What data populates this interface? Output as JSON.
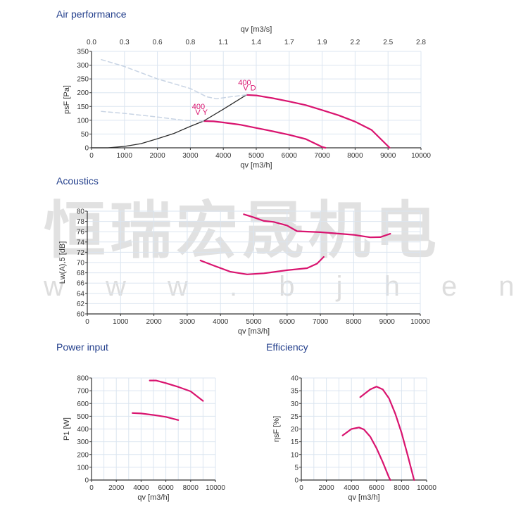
{
  "watermark": {
    "text": "恒瑞宏晟机电",
    "url": "w w w . b j h e n g r u i . c n"
  },
  "colors": {
    "curve": "#d9146f",
    "system_curve": "#2b2b2b",
    "dashed": "#c8d4e4",
    "grid": "#dbe5f0",
    "title": "#233f8c"
  },
  "chart_data": [
    {
      "id": "air",
      "type": "line",
      "title": "Air performance",
      "xlabel": "qv [m3/h]",
      "x2label": "qv [m3/s]",
      "ylabel": "psF [Pa]",
      "xlim": [
        0,
        10000
      ],
      "ylim": [
        0,
        350
      ],
      "xticks": [
        0,
        1000,
        2000,
        3000,
        4000,
        5000,
        6000,
        7000,
        8000,
        9000,
        10000
      ],
      "x2ticks": [
        "0.0",
        "0.3",
        "0.6",
        "0.8",
        "1.1",
        "1.4",
        "1.7",
        "1.9",
        "2.2",
        "2.5",
        "2.8"
      ],
      "yticks": [
        0,
        50,
        100,
        150,
        200,
        250,
        300,
        350
      ],
      "grid": true,
      "annotations": [
        {
          "text": "400",
          "x": 4450,
          "y": 228
        },
        {
          "text": "V D",
          "x": 4600,
          "y": 208
        },
        {
          "text": "400",
          "x": 3050,
          "y": 140
        },
        {
          "text": "V Y",
          "x": 3150,
          "y": 120
        }
      ],
      "series": [
        {
          "label": "400 VD",
          "style": "solid",
          "points": [
            [
              4700,
              192
            ],
            [
              5000,
              190
            ],
            [
              5500,
              180
            ],
            [
              6000,
              168
            ],
            [
              6500,
              155
            ],
            [
              7000,
              137
            ],
            [
              7500,
              118
            ],
            [
              8000,
              95
            ],
            [
              8500,
              65
            ],
            [
              9050,
              0
            ]
          ]
        },
        {
          "label": "400 VY",
          "style": "solid",
          "points": [
            [
              3400,
              97
            ],
            [
              3700,
              96
            ],
            [
              4000,
              92
            ],
            [
              4500,
              84
            ],
            [
              5000,
              72
            ],
            [
              5500,
              60
            ],
            [
              6000,
              47
            ],
            [
              6500,
              32
            ],
            [
              7000,
              3
            ],
            [
              7100,
              0
            ]
          ]
        },
        {
          "label": "system",
          "style": "system",
          "points": [
            [
              0,
              0
            ],
            [
              500,
              0
            ],
            [
              1000,
              5
            ],
            [
              1500,
              15
            ],
            [
              2000,
              33
            ],
            [
              2500,
              52
            ],
            [
              3000,
              78
            ],
            [
              3400,
              97
            ],
            [
              4000,
              140
            ],
            [
              4700,
              192
            ]
          ]
        },
        {
          "label": "VD stall",
          "style": "dashed",
          "points": [
            [
              300,
              320
            ],
            [
              1000,
              295
            ],
            [
              2000,
              250
            ],
            [
              3000,
              215
            ],
            [
              3500,
              185
            ],
            [
              3800,
              178
            ],
            [
              4200,
              185
            ],
            [
              4700,
              192
            ]
          ]
        },
        {
          "label": "VY stall",
          "style": "dashed",
          "points": [
            [
              300,
              132
            ],
            [
              1000,
              125
            ],
            [
              2000,
              112
            ],
            [
              2800,
              100
            ],
            [
              3400,
              97
            ]
          ]
        }
      ]
    },
    {
      "id": "acoustics",
      "type": "line",
      "title": "Acoustics",
      "xlabel": "qv [m3/h]",
      "ylabel": "Lw(A),5 [dB]",
      "xlim": [
        0,
        10000
      ],
      "ylim": [
        60,
        80
      ],
      "xticks": [
        0,
        1000,
        2000,
        3000,
        4000,
        5000,
        6000,
        7000,
        8000,
        9000,
        10000
      ],
      "yticks": [
        60,
        62,
        64,
        66,
        68,
        70,
        72,
        74,
        76,
        78,
        80
      ],
      "grid": true,
      "series": [
        {
          "label": "400 VD",
          "style": "solid",
          "points": [
            [
              4700,
              79.4
            ],
            [
              5000,
              78.8
            ],
            [
              5300,
              78.1
            ],
            [
              5600,
              77.9
            ],
            [
              6000,
              77.2
            ],
            [
              6300,
              76.1
            ],
            [
              7000,
              75.9
            ],
            [
              8000,
              75.4
            ],
            [
              8500,
              74.9
            ],
            [
              8800,
              74.95
            ],
            [
              9100,
              75.6
            ]
          ]
        },
        {
          "label": "400 VY",
          "style": "solid",
          "points": [
            [
              3400,
              70.4
            ],
            [
              3800,
              69.4
            ],
            [
              4300,
              68.2
            ],
            [
              4800,
              67.7
            ],
            [
              5300,
              67.9
            ],
            [
              6000,
              68.5
            ],
            [
              6600,
              68.9
            ],
            [
              6900,
              69.8
            ],
            [
              7100,
              71.1
            ]
          ]
        }
      ]
    },
    {
      "id": "power",
      "type": "line",
      "title": "Power input",
      "xlabel": "qv [m3/h]",
      "ylabel": "P1 [W]",
      "xlim": [
        0,
        10000
      ],
      "ylim": [
        0,
        800
      ],
      "xticks": [
        0,
        2000,
        4000,
        6000,
        8000,
        10000
      ],
      "xgrid_step": 1000,
      "yticks": [
        0,
        100,
        200,
        300,
        400,
        500,
        600,
        700,
        800
      ],
      "grid": true,
      "series": [
        {
          "label": "400 VD",
          "style": "solid",
          "points": [
            [
              4700,
              780
            ],
            [
              5200,
              780
            ],
            [
              6000,
              760
            ],
            [
              7000,
              730
            ],
            [
              8000,
              695
            ],
            [
              9000,
              620
            ]
          ]
        },
        {
          "label": "400 VY",
          "style": "solid",
          "points": [
            [
              3300,
              525
            ],
            [
              4000,
              522
            ],
            [
              5000,
              510
            ],
            [
              6000,
              495
            ],
            [
              7000,
              470
            ]
          ]
        }
      ]
    },
    {
      "id": "efficiency",
      "type": "line",
      "title": "Efficiency",
      "xlabel": "qv [m3/h]",
      "ylabel": "ηsF [%]",
      "xlim": [
        0,
        10000
      ],
      "ylim": [
        0,
        40
      ],
      "xticks": [
        0,
        2000,
        4000,
        6000,
        8000,
        10000
      ],
      "xgrid_step": 1000,
      "yticks": [
        0,
        5,
        10,
        15,
        20,
        25,
        30,
        35,
        40
      ],
      "grid": true,
      "series": [
        {
          "label": "400 VD",
          "style": "solid",
          "points": [
            [
              4700,
              32.5
            ],
            [
              5500,
              35.5
            ],
            [
              6000,
              36.6
            ],
            [
              6500,
              35.5
            ],
            [
              7000,
              32
            ],
            [
              7500,
              26
            ],
            [
              8000,
              18.5
            ],
            [
              8500,
              9.5
            ],
            [
              9000,
              0
            ]
          ]
        },
        {
          "label": "400 VY",
          "style": "solid",
          "points": [
            [
              3300,
              17.5
            ],
            [
              4000,
              20
            ],
            [
              4600,
              20.6
            ],
            [
              5000,
              19.8
            ],
            [
              5500,
              17
            ],
            [
              6000,
              12.5
            ],
            [
              6500,
              7
            ],
            [
              7000,
              1
            ],
            [
              7100,
              0
            ]
          ]
        }
      ]
    }
  ]
}
